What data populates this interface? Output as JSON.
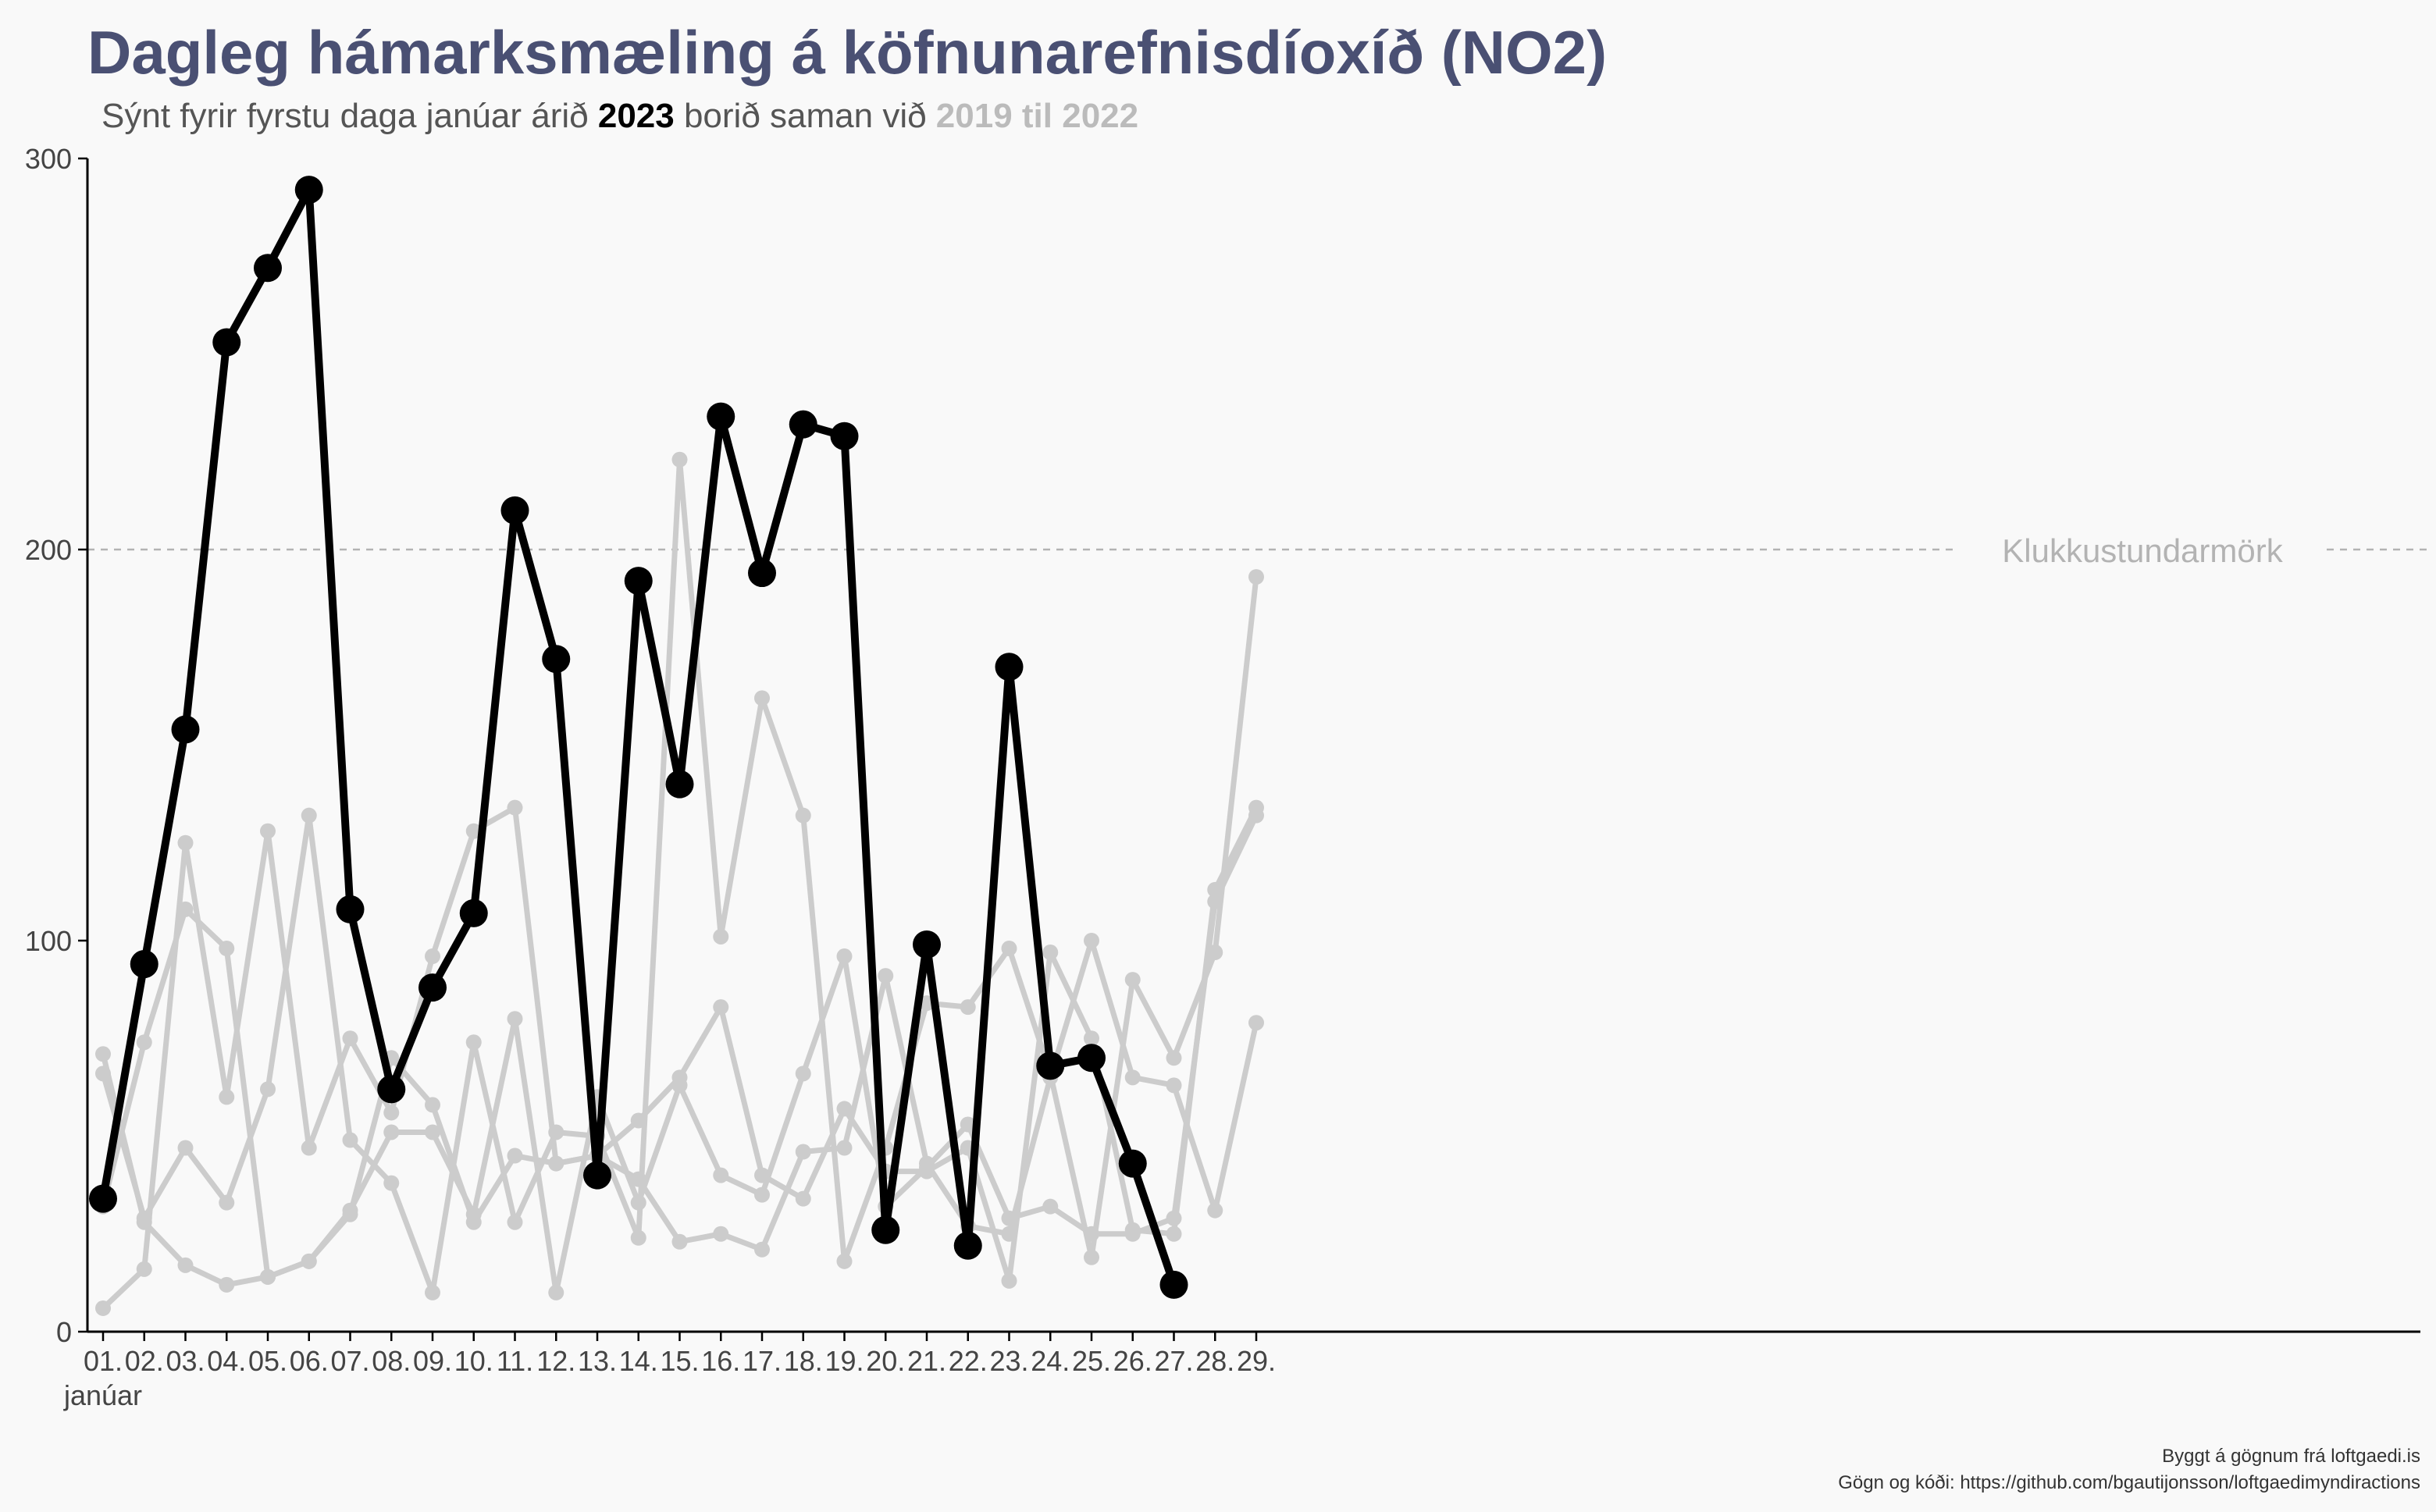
{
  "title": "Dagleg hámarksmæling á köfnunarefnisdíoxíð (NO2)",
  "subtitle": {
    "part1": "Sýnt fyrir fyrstu daga janúar árið ",
    "highlight_year": "2023",
    "part2": " borið saman við ",
    "comparison": "2019 til 2022"
  },
  "caption": {
    "line1": "Byggt á gögnum frá loftgaedi.is",
    "line2": "Gögn og kóði: https://github.com/bgautijonsson/loftgaedimyndiractions"
  },
  "colors": {
    "highlight": "#000000",
    "comparison": "#cccccc",
    "title": "#4a5073",
    "reference_line": "#b3b3b3",
    "background": "#f9f9f9"
  },
  "chart_data": {
    "type": "line",
    "title": "Dagleg hámarksmæling á köfnunarefnisdíoxíð (NO2)",
    "xlabel": "",
    "ylabel": "",
    "x_tick_labels": [
      "01.",
      "02.",
      "03.",
      "04.",
      "05.",
      "06.",
      "07.",
      "08.",
      "09.",
      "10.",
      "11.",
      "12.",
      "13.",
      "14.",
      "15.",
      "16.",
      "17.",
      "18.",
      "19.",
      "20.",
      "21.",
      "22.",
      "23.",
      "24.",
      "25.",
      "26.",
      "27.",
      "28.",
      "29."
    ],
    "x_secondary_label": "janúar",
    "x": [
      1,
      2,
      3,
      4,
      5,
      6,
      7,
      8,
      9,
      10,
      11,
      12,
      13,
      14,
      15,
      16,
      17,
      18,
      19,
      20,
      21,
      22,
      23,
      24,
      25,
      26,
      27,
      28,
      29
    ],
    "ylim": [
      0,
      300
    ],
    "y_ticks": [
      0,
      100,
      200,
      300
    ],
    "grid": false,
    "reference_line": {
      "y": 200,
      "label": "Klukkustundarmörk"
    },
    "highlight_series": {
      "name": "2023",
      "values": [
        34,
        94,
        154,
        253,
        272,
        292,
        108,
        62,
        88,
        107,
        210,
        172,
        40,
        192,
        140,
        234,
        194,
        232,
        229,
        26,
        99,
        22,
        170,
        68,
        70,
        43,
        12
      ]
    },
    "comparison_series": [
      {
        "values": [
          71,
          28,
          17,
          12,
          14,
          18,
          30,
          70,
          58,
          28,
          45,
          43,
          45,
          54,
          65,
          83,
          40,
          34,
          57,
          41,
          41,
          47,
          13,
          97,
          75,
          26,
          25,
          113,
          134
        ]
      },
      {
        "values": [
          66,
          29,
          47,
          33,
          62,
          132,
          49,
          38,
          10,
          74,
          28,
          51,
          50,
          24,
          223,
          101,
          162,
          132,
          18,
          47,
          84,
          83,
          98,
          66,
          19,
          90,
          70,
          97,
          193
        ]
      },
      {
        "values": [
          32,
          74,
          108,
          98,
          14,
          18,
          31,
          51,
          51,
          30,
          80,
          10,
          60,
          33,
          63,
          40,
          35,
          66,
          96,
          32,
          42,
          53,
          29,
          32,
          25,
          25,
          29,
          110,
          132
        ]
      },
      {
        "values": [
          6,
          16,
          125,
          60,
          128,
          47,
          75,
          56,
          96,
          128,
          134,
          43,
          45,
          39,
          23,
          25,
          21,
          46,
          47,
          91,
          43,
          27,
          25,
          65,
          100,
          65,
          63,
          31,
          79
        ]
      }
    ]
  }
}
